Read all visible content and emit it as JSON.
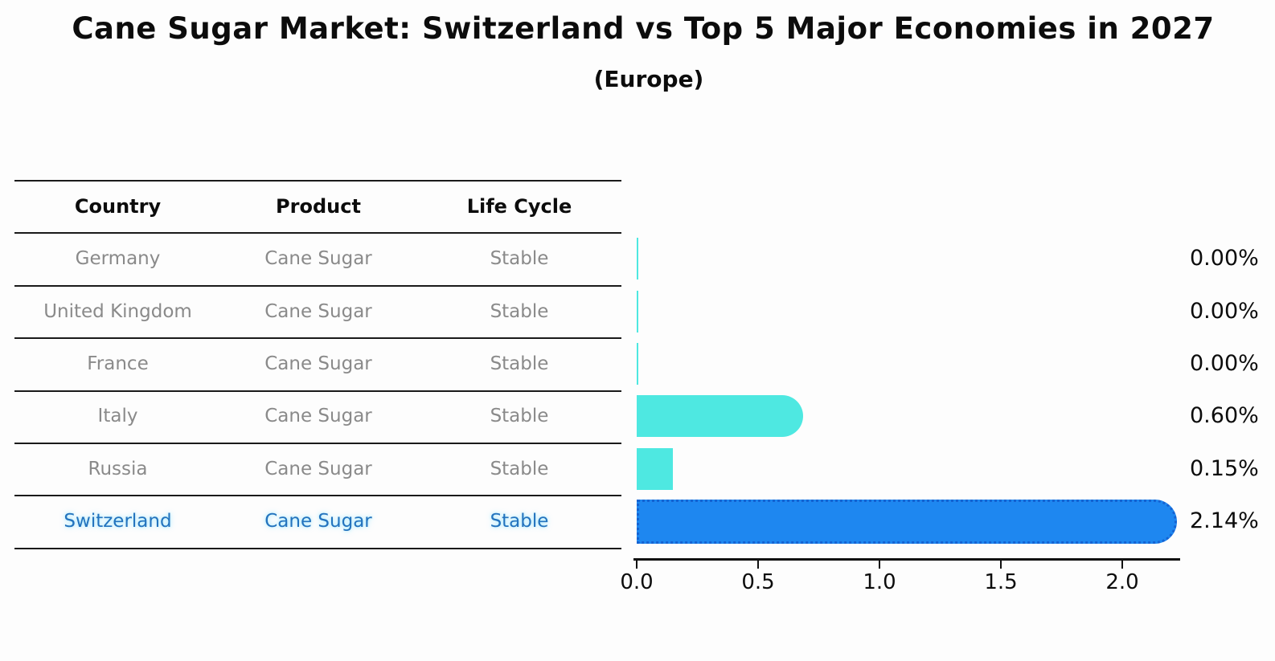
{
  "chart_data": {
    "type": "bar",
    "orientation": "horizontal",
    "title": "Cane Sugar Market: Switzerland vs Top 5 Major Economies in 2027",
    "subtitle": "(Europe)",
    "categories": [
      "Germany",
      "United Kingdom",
      "France",
      "Italy",
      "Russia",
      "Switzerland"
    ],
    "values": [
      0.0,
      0.0,
      0.0,
      0.6,
      0.15,
      2.14
    ],
    "value_labels": [
      "0.00%",
      "0.00%",
      "0.00%",
      "0.60%",
      "0.15%",
      "2.14%"
    ],
    "xtick_labels": [
      "0.0",
      "0.5",
      "1.0",
      "1.5",
      "2.0"
    ],
    "xtick_values": [
      0.0,
      0.5,
      1.0,
      1.5,
      2.0
    ],
    "xlim": [
      0,
      2.25
    ],
    "grid": false,
    "legend": "none",
    "highlight_index": 5,
    "bar_color": "#4EE8E1",
    "highlight_bar_color": "#1E87F0",
    "highlight_bar_edge_color": "#1563D2"
  },
  "table": {
    "headers": [
      "Country",
      "Product",
      "Life Cycle"
    ],
    "rows": [
      {
        "country": "Germany",
        "product": "Cane Sugar",
        "life_cycle": "Stable",
        "highlight": false
      },
      {
        "country": "United Kingdom",
        "product": "Cane Sugar",
        "life_cycle": "Stable",
        "highlight": false
      },
      {
        "country": "France",
        "product": "Cane Sugar",
        "life_cycle": "Stable",
        "highlight": false
      },
      {
        "country": "Italy",
        "product": "Cane Sugar",
        "life_cycle": "Stable",
        "highlight": false
      },
      {
        "country": "Russia",
        "product": "Cane Sugar",
        "life_cycle": "Stable",
        "highlight": false
      },
      {
        "country": "Switzerland",
        "product": "Cane Sugar",
        "life_cycle": "Stable",
        "highlight": true
      }
    ],
    "row_text_color": "#8a8a8a",
    "header_text_color": "#0c0c0c",
    "highlight_text_color": "#2373BE"
  }
}
